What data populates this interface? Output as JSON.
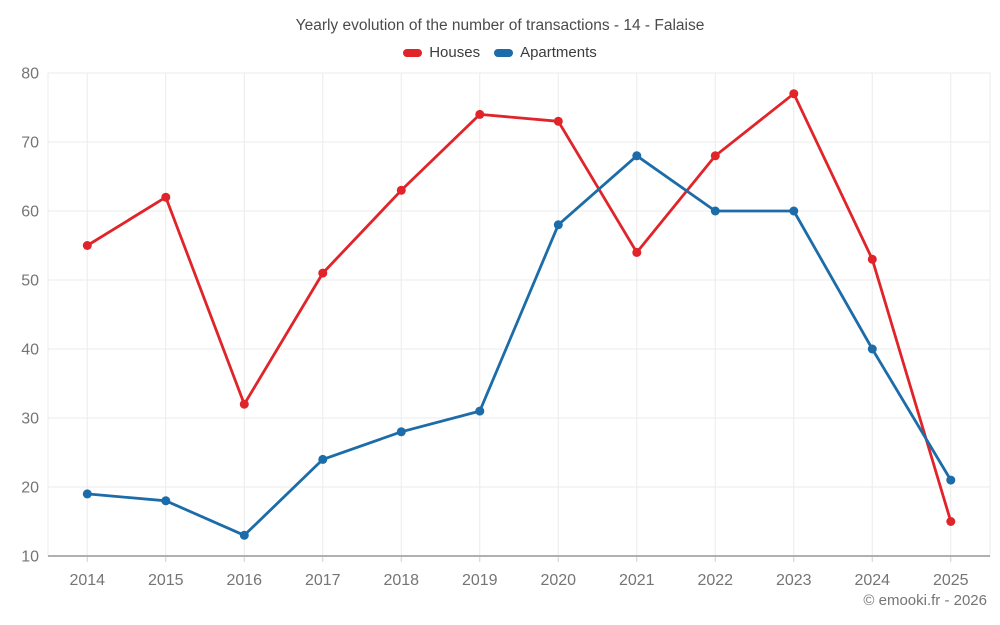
{
  "title": "Yearly evolution of the number of transactions - 14 - Falaise",
  "legend": {
    "items": [
      {
        "label": "Houses",
        "color": "#e02429"
      },
      {
        "label": "Apartments",
        "color": "#1b6ca8"
      }
    ]
  },
  "footer": {
    "copyright": "© emooki.fr - 2026"
  },
  "colors": {
    "grid": "#ebebeb",
    "axis_line": "#b0b0b0",
    "tick": "#cfcfcf",
    "tick_label": "#757575",
    "title_text": "#4b4b4b",
    "houses": "#e02429",
    "apartments": "#1b6ca8"
  },
  "chart_data": {
    "type": "line",
    "title": "Yearly evolution of the number of transactions - 14 - Falaise",
    "categories": [
      "2014",
      "2015",
      "2016",
      "2017",
      "2018",
      "2019",
      "2020",
      "2021",
      "2022",
      "2023",
      "2024",
      "2025"
    ],
    "series": [
      {
        "name": "Houses",
        "color": "#e02429",
        "values": [
          55,
          62,
          32,
          51,
          63,
          74,
          73,
          54,
          68,
          77,
          53,
          15
        ]
      },
      {
        "name": "Apartments",
        "color": "#1b6ca8",
        "values": [
          19,
          18,
          13,
          24,
          28,
          31,
          58,
          68,
          60,
          60,
          40,
          21
        ]
      }
    ],
    "xlabel": "",
    "ylabel": "",
    "ylim": [
      10,
      80
    ],
    "ytick_step": 10,
    "grid": true,
    "legend_position": "top",
    "marker": "circle"
  }
}
